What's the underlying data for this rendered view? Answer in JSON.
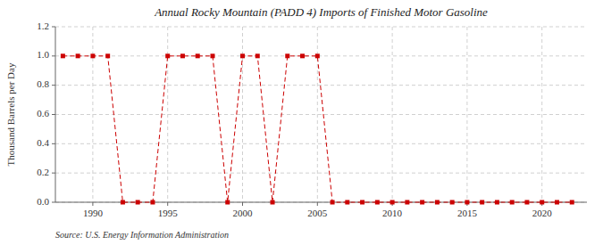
{
  "chart_data": {
    "type": "line",
    "title": "Annual Rocky Mountain (PADD 4) Imports of Finished Motor Gasoline",
    "ylabel": "Thousand Barrels per Day",
    "source": "Source: U.S. Energy Information Administration",
    "x": [
      1988,
      1989,
      1990,
      1991,
      1992,
      1993,
      1994,
      1995,
      1996,
      1997,
      1998,
      1999,
      2000,
      2001,
      2002,
      2003,
      2004,
      2005,
      2006,
      2007,
      2008,
      2009,
      2010,
      2011,
      2012,
      2013,
      2014,
      2015,
      2016,
      2017,
      2018,
      2019,
      2020,
      2021,
      2022
    ],
    "values": [
      1.0,
      1.0,
      1.0,
      1.0,
      0.0,
      0.0,
      0.0,
      1.0,
      1.0,
      1.0,
      1.0,
      0.0,
      1.0,
      1.0,
      0.0,
      1.0,
      1.0,
      1.0,
      0.0,
      0.0,
      0.0,
      0.0,
      0.0,
      0.0,
      0.0,
      0.0,
      0.0,
      0.0,
      0.0,
      0.0,
      0.0,
      0.0,
      0.0,
      0.0,
      0.0
    ],
    "color": "#cc0000",
    "marker": "square",
    "line_style": "dashed",
    "xlim": [
      1987.5,
      2023
    ],
    "xticks": [
      1990,
      1995,
      2000,
      2005,
      2010,
      2015,
      2020
    ],
    "ylim": [
      0.0,
      1.2
    ],
    "yticks": [
      {
        "value": 0.0,
        "label": "0.0"
      },
      0.2,
      0.4,
      0.6,
      0.8,
      {
        "value": 1.0,
        "label": "1.0"
      },
      1.2
    ],
    "grid": true
  }
}
